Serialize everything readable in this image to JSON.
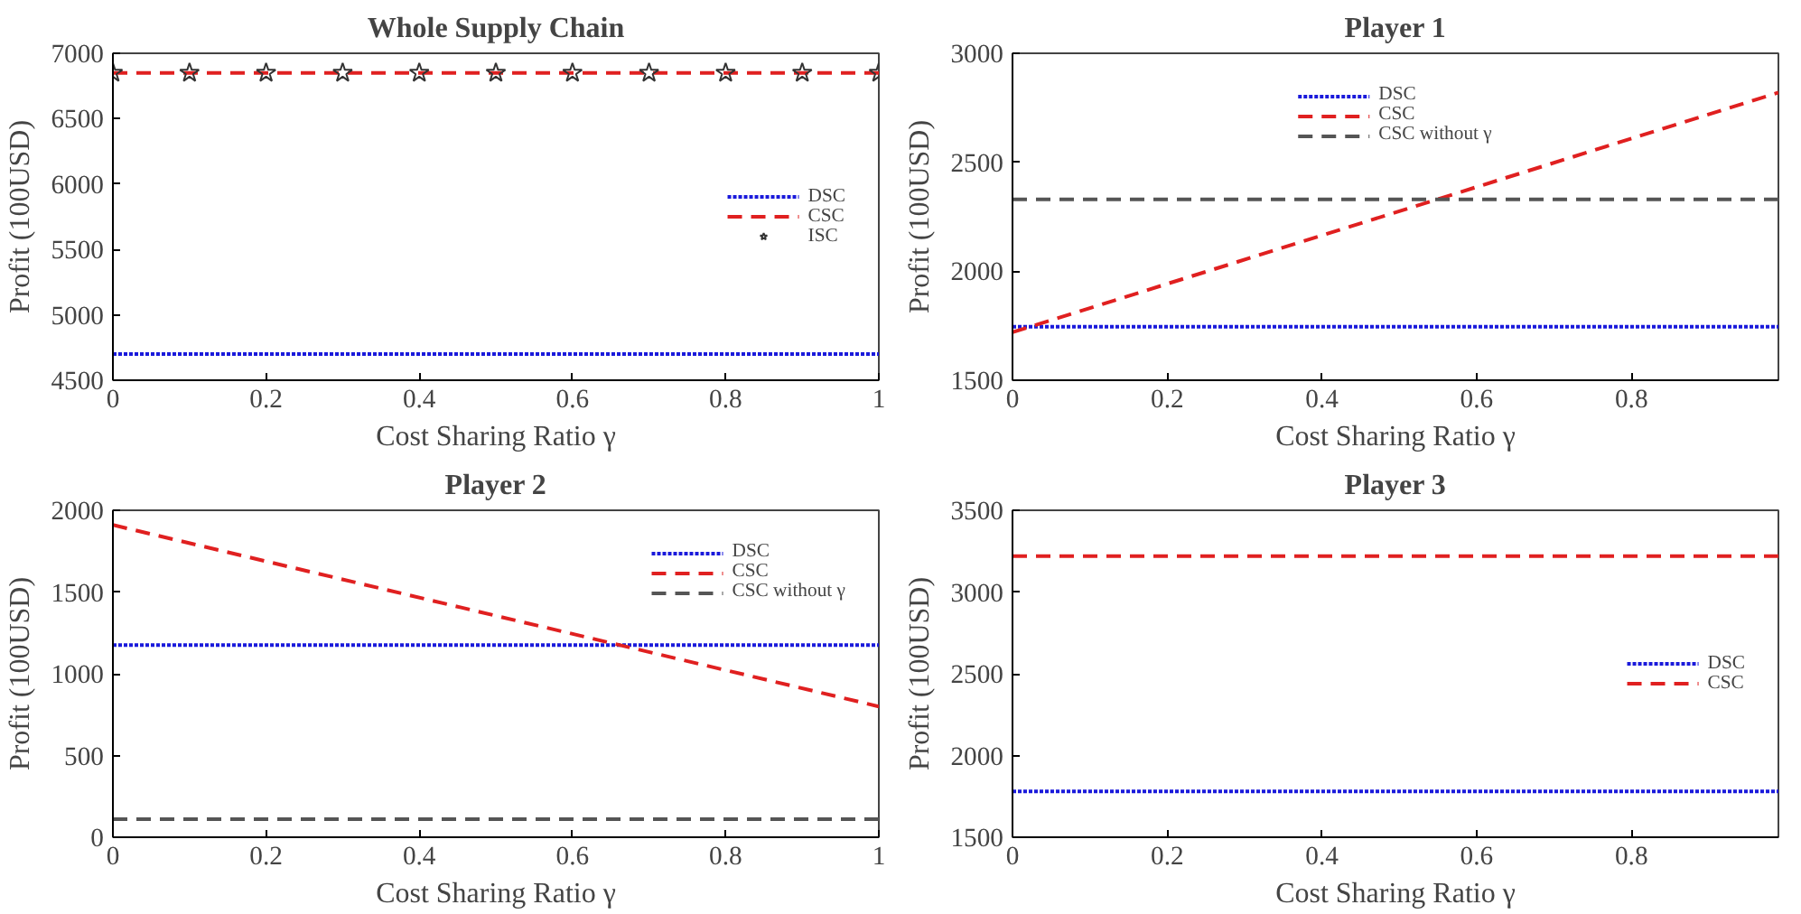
{
  "chart_data": [
    {
      "type": "line",
      "title": "Whole Supply Chain",
      "xlabel": "Cost Sharing Ratio γ",
      "ylabel": "Profit (100USD)",
      "xlim": [
        0,
        1
      ],
      "xticks": [
        0,
        0.2,
        0.4,
        0.6,
        0.8,
        1
      ],
      "ylim": [
        4500,
        7000
      ],
      "yticks": [
        4500,
        5000,
        5500,
        6000,
        6500,
        7000
      ],
      "legend": "right",
      "series": [
        {
          "name": "DSC",
          "color": "#1a1adb",
          "line_style": "dotted",
          "x": [
            0,
            1
          ],
          "values": [
            4700,
            4700
          ]
        },
        {
          "name": "CSC",
          "color": "#e02020",
          "line_style": "dashed",
          "x": [
            0,
            1
          ],
          "values": [
            6850,
            6850
          ]
        },
        {
          "name": "ISC",
          "type": "scatter",
          "marker": "star",
          "color": "#333333",
          "x": [
            0,
            0.1,
            0.2,
            0.3,
            0.4,
            0.5,
            0.6,
            0.7,
            0.8,
            0.9,
            1
          ],
          "values": [
            6850,
            6850,
            6850,
            6850,
            6850,
            6850,
            6850,
            6850,
            6850,
            6850,
            6850
          ]
        }
      ]
    },
    {
      "type": "line",
      "title": "Player 1",
      "xlabel": "Cost Sharing Ratio γ",
      "ylabel": "Profit (100USD)",
      "xlim": [
        0,
        0.99
      ],
      "xticks": [
        0,
        0.2,
        0.4,
        0.6,
        0.8
      ],
      "ylim": [
        1500,
        3000
      ],
      "yticks": [
        1500,
        2000,
        2500,
        3000
      ],
      "legend": "top",
      "series": [
        {
          "name": "DSC",
          "color": "#1a1adb",
          "line_style": "dotted",
          "x": [
            0,
            0.99
          ],
          "values": [
            1745,
            1745
          ]
        },
        {
          "name": "CSC",
          "color": "#e02020",
          "line_style": "dashed",
          "x": [
            0,
            0.99
          ],
          "values": [
            1720,
            2820
          ]
        },
        {
          "name": "CSC without γ",
          "color": "#555555",
          "line_style": "dashed",
          "x": [
            0,
            0.99
          ],
          "values": [
            2330,
            2330
          ]
        }
      ]
    },
    {
      "type": "line",
      "title": "Player 2",
      "xlabel": "Cost Sharing Ratio γ",
      "ylabel": "Profit (100USD)",
      "xlim": [
        0,
        1
      ],
      "xticks": [
        0,
        0.2,
        0.4,
        0.6,
        0.8,
        1
      ],
      "ylim": [
        0,
        2000
      ],
      "yticks": [
        0,
        500,
        1000,
        1500,
        2000
      ],
      "legend": "top right",
      "series": [
        {
          "name": "DSC",
          "color": "#1a1adb",
          "line_style": "dotted",
          "x": [
            0,
            1
          ],
          "values": [
            1175,
            1175
          ]
        },
        {
          "name": "CSC",
          "color": "#e02020",
          "line_style": "dashed",
          "x": [
            0,
            1
          ],
          "values": [
            1910,
            800
          ]
        },
        {
          "name": "CSC without γ",
          "color": "#555555",
          "line_style": "dashed",
          "x": [
            0,
            1
          ],
          "values": [
            110,
            110
          ]
        }
      ]
    },
    {
      "type": "line",
      "title": "Player 3",
      "xlabel": "Cost Sharing Ratio γ",
      "ylabel": "Profit (100USD)",
      "xlim": [
        0,
        0.99
      ],
      "xticks": [
        0,
        0.2,
        0.4,
        0.6,
        0.8
      ],
      "ylim": [
        1500,
        3500
      ],
      "yticks": [
        1500,
        2000,
        2500,
        3000,
        3500
      ],
      "legend": "right",
      "series": [
        {
          "name": "DSC",
          "color": "#1a1adb",
          "line_style": "dotted",
          "x": [
            0,
            0.99
          ],
          "values": [
            1780,
            1780
          ]
        },
        {
          "name": "CSC",
          "color": "#e02020",
          "line_style": "dashed",
          "x": [
            0,
            0.99
          ],
          "values": [
            3220,
            3220
          ]
        }
      ]
    }
  ]
}
